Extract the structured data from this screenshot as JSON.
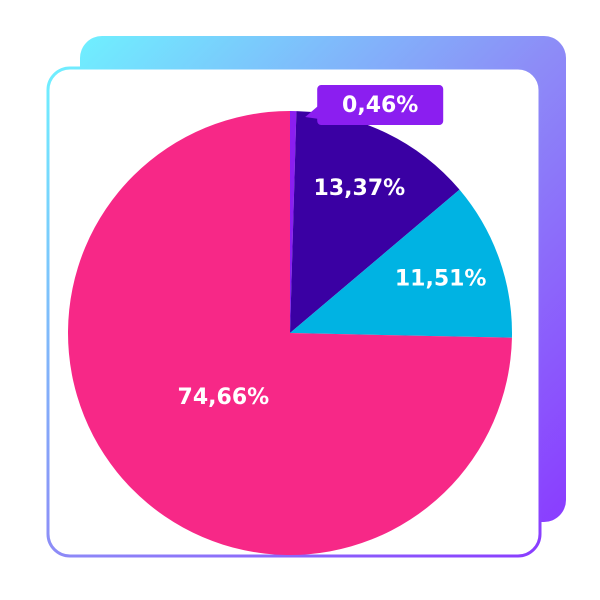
{
  "chart_data": {
    "type": "pie",
    "values": [
      0.46,
      13.37,
      11.51,
      74.66
    ],
    "value_labels": [
      "0,46%",
      "13,37%",
      "11,51%",
      "74,66%"
    ],
    "colors": [
      "#8b1ef0",
      "#3a00a3",
      "#00b3e3",
      "#f72887"
    ]
  }
}
